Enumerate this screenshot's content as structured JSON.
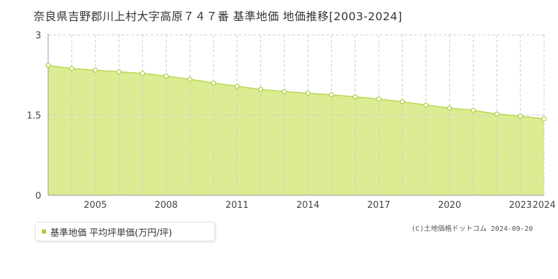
{
  "chart_data": {
    "type": "area",
    "title": "奈良県吉野郡川上村大字高原７４７番 基準地価 地価推移[2003-2024]",
    "x": [
      2003,
      2004,
      2005,
      2006,
      2007,
      2008,
      2009,
      2010,
      2011,
      2012,
      2013,
      2014,
      2015,
      2016,
      2017,
      2018,
      2019,
      2020,
      2021,
      2022,
      2023,
      2024
    ],
    "series": [
      {
        "name": "基準地価 平均坪単価(万円/坪)",
        "values": [
          2.43,
          2.37,
          2.34,
          2.31,
          2.28,
          2.23,
          2.17,
          2.1,
          2.04,
          1.98,
          1.94,
          1.91,
          1.88,
          1.84,
          1.8,
          1.75,
          1.69,
          1.63,
          1.59,
          1.52,
          1.48,
          1.43
        ]
      }
    ],
    "ylim": [
      0,
      3
    ],
    "xlim": [
      2003,
      2024
    ],
    "yticks": [
      "0",
      "1.5",
      "3"
    ],
    "xticks": [
      2005,
      2008,
      2011,
      2014,
      2017,
      2020,
      2023,
      2024
    ],
    "grid": true,
    "legend_position": "bottom-left",
    "colors": {
      "fill": "#dcec92",
      "line": "#b8d84e",
      "marker_fill": "#ffffff",
      "marker_stroke": "#a6cf3a",
      "grid": "#cccccc",
      "legend_swatch": "#a6cf3a"
    }
  },
  "legend": {
    "label": "基準地価 平均坪単価(万円/坪)"
  },
  "copyright": "(C)土地価格ドットコム 2024-09-20"
}
